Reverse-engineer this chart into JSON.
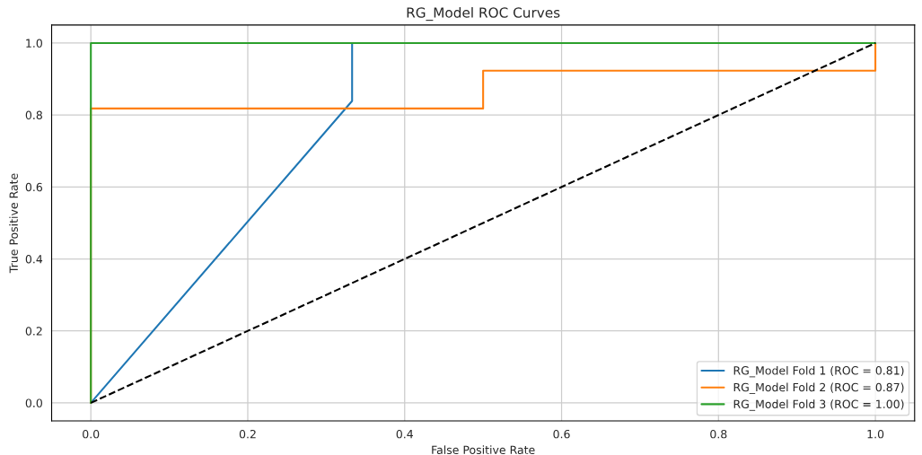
{
  "chart_data": {
    "type": "line",
    "title": "RG_Model ROC Curves",
    "xlabel": "False Positive Rate",
    "ylabel": "True Positive Rate",
    "series": [
      {
        "name": "RG_Model Fold 1 (ROC = 0.81)",
        "color": "#1f77b4",
        "x": [
          0,
          0.333,
          0.333
        ],
        "values": [
          0,
          0.839,
          1
        ]
      },
      {
        "name": "RG_Model Fold 2 (ROC = 0.87)",
        "color": "#ff7f0e",
        "x": [
          0,
          0,
          0.5,
          0.5,
          1,
          1
        ],
        "values": [
          0,
          0.818,
          0.818,
          0.923,
          0.923,
          1
        ]
      },
      {
        "name": "RG_Model Fold 3 (ROC = 1.00)",
        "color": "#2ca02c",
        "x": [
          0,
          0,
          1
        ],
        "values": [
          0,
          1,
          1
        ]
      },
      {
        "color": "#000000",
        "line_style": "dashed",
        "x": [
          0,
          1
        ],
        "values": [
          0,
          1
        ]
      }
    ],
    "xlim": [
      -0.05,
      1.05
    ],
    "ylim": [
      -0.05,
      1.05
    ],
    "xticks": [
      {
        "value": 0,
        "label": "0.0"
      },
      0.2,
      0.4,
      0.6,
      0.8,
      {
        "value": 1,
        "label": "1.0"
      }
    ],
    "yticks": [
      {
        "value": 0,
        "label": "0.0"
      },
      0.2,
      0.4,
      0.6,
      0.8,
      {
        "value": 1,
        "label": "1.0"
      }
    ],
    "grid": true,
    "legend": "bottom right"
  }
}
